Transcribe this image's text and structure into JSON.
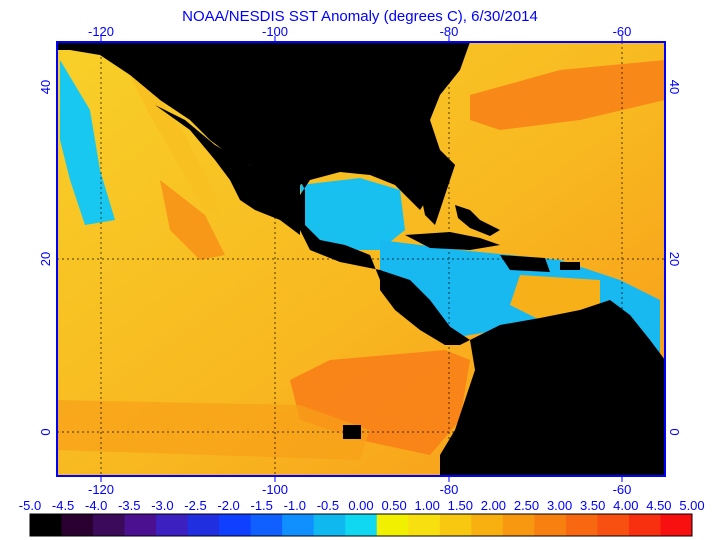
{
  "title": "NOAA/NESDIS SST Anomaly (degrees C), 6/30/2014",
  "map": {
    "lon_range": [
      -125,
      -55
    ],
    "lat_range": [
      -5,
      47
    ],
    "top_lon_ticks": [
      "-120",
      "-100",
      "-80",
      "-60"
    ],
    "bottom_lon_ticks": [
      "-120",
      "-100",
      "-80",
      "-60"
    ],
    "left_lat_ticks": [
      "40",
      "20",
      "0"
    ],
    "right_lat_ticks": [
      "40",
      "20",
      "0"
    ],
    "gridlines_lon": [
      -120,
      -100,
      -80,
      -60
    ],
    "gridlines_lat": [
      20,
      0
    ],
    "land_color": "#000000",
    "frame_color": "#0000ff"
  },
  "colorbar": {
    "labels": [
      "-5.0",
      "-4.5",
      "-4.0",
      "-3.5",
      "-3.0",
      "-2.5",
      "-2.0",
      "-1.5",
      "-1.0",
      "-0.5",
      "0.00",
      "0.50",
      "1.00",
      "1.50",
      "2.00",
      "2.50",
      "3.00",
      "3.50",
      "4.00",
      "4.50",
      "5.00"
    ],
    "colors": [
      "#000000",
      "#2a0030",
      "#3c0a5a",
      "#4a1090",
      "#3c20c0",
      "#2030e0",
      "#1040ff",
      "#1060ff",
      "#1090ff",
      "#10b8f0",
      "#10d8f0",
      "#f0f000",
      "#f8e010",
      "#f8c810",
      "#f8b010",
      "#f89810",
      "#f88010",
      "#f86810",
      "#f85010",
      "#f83010",
      "#f81010"
    ]
  }
}
